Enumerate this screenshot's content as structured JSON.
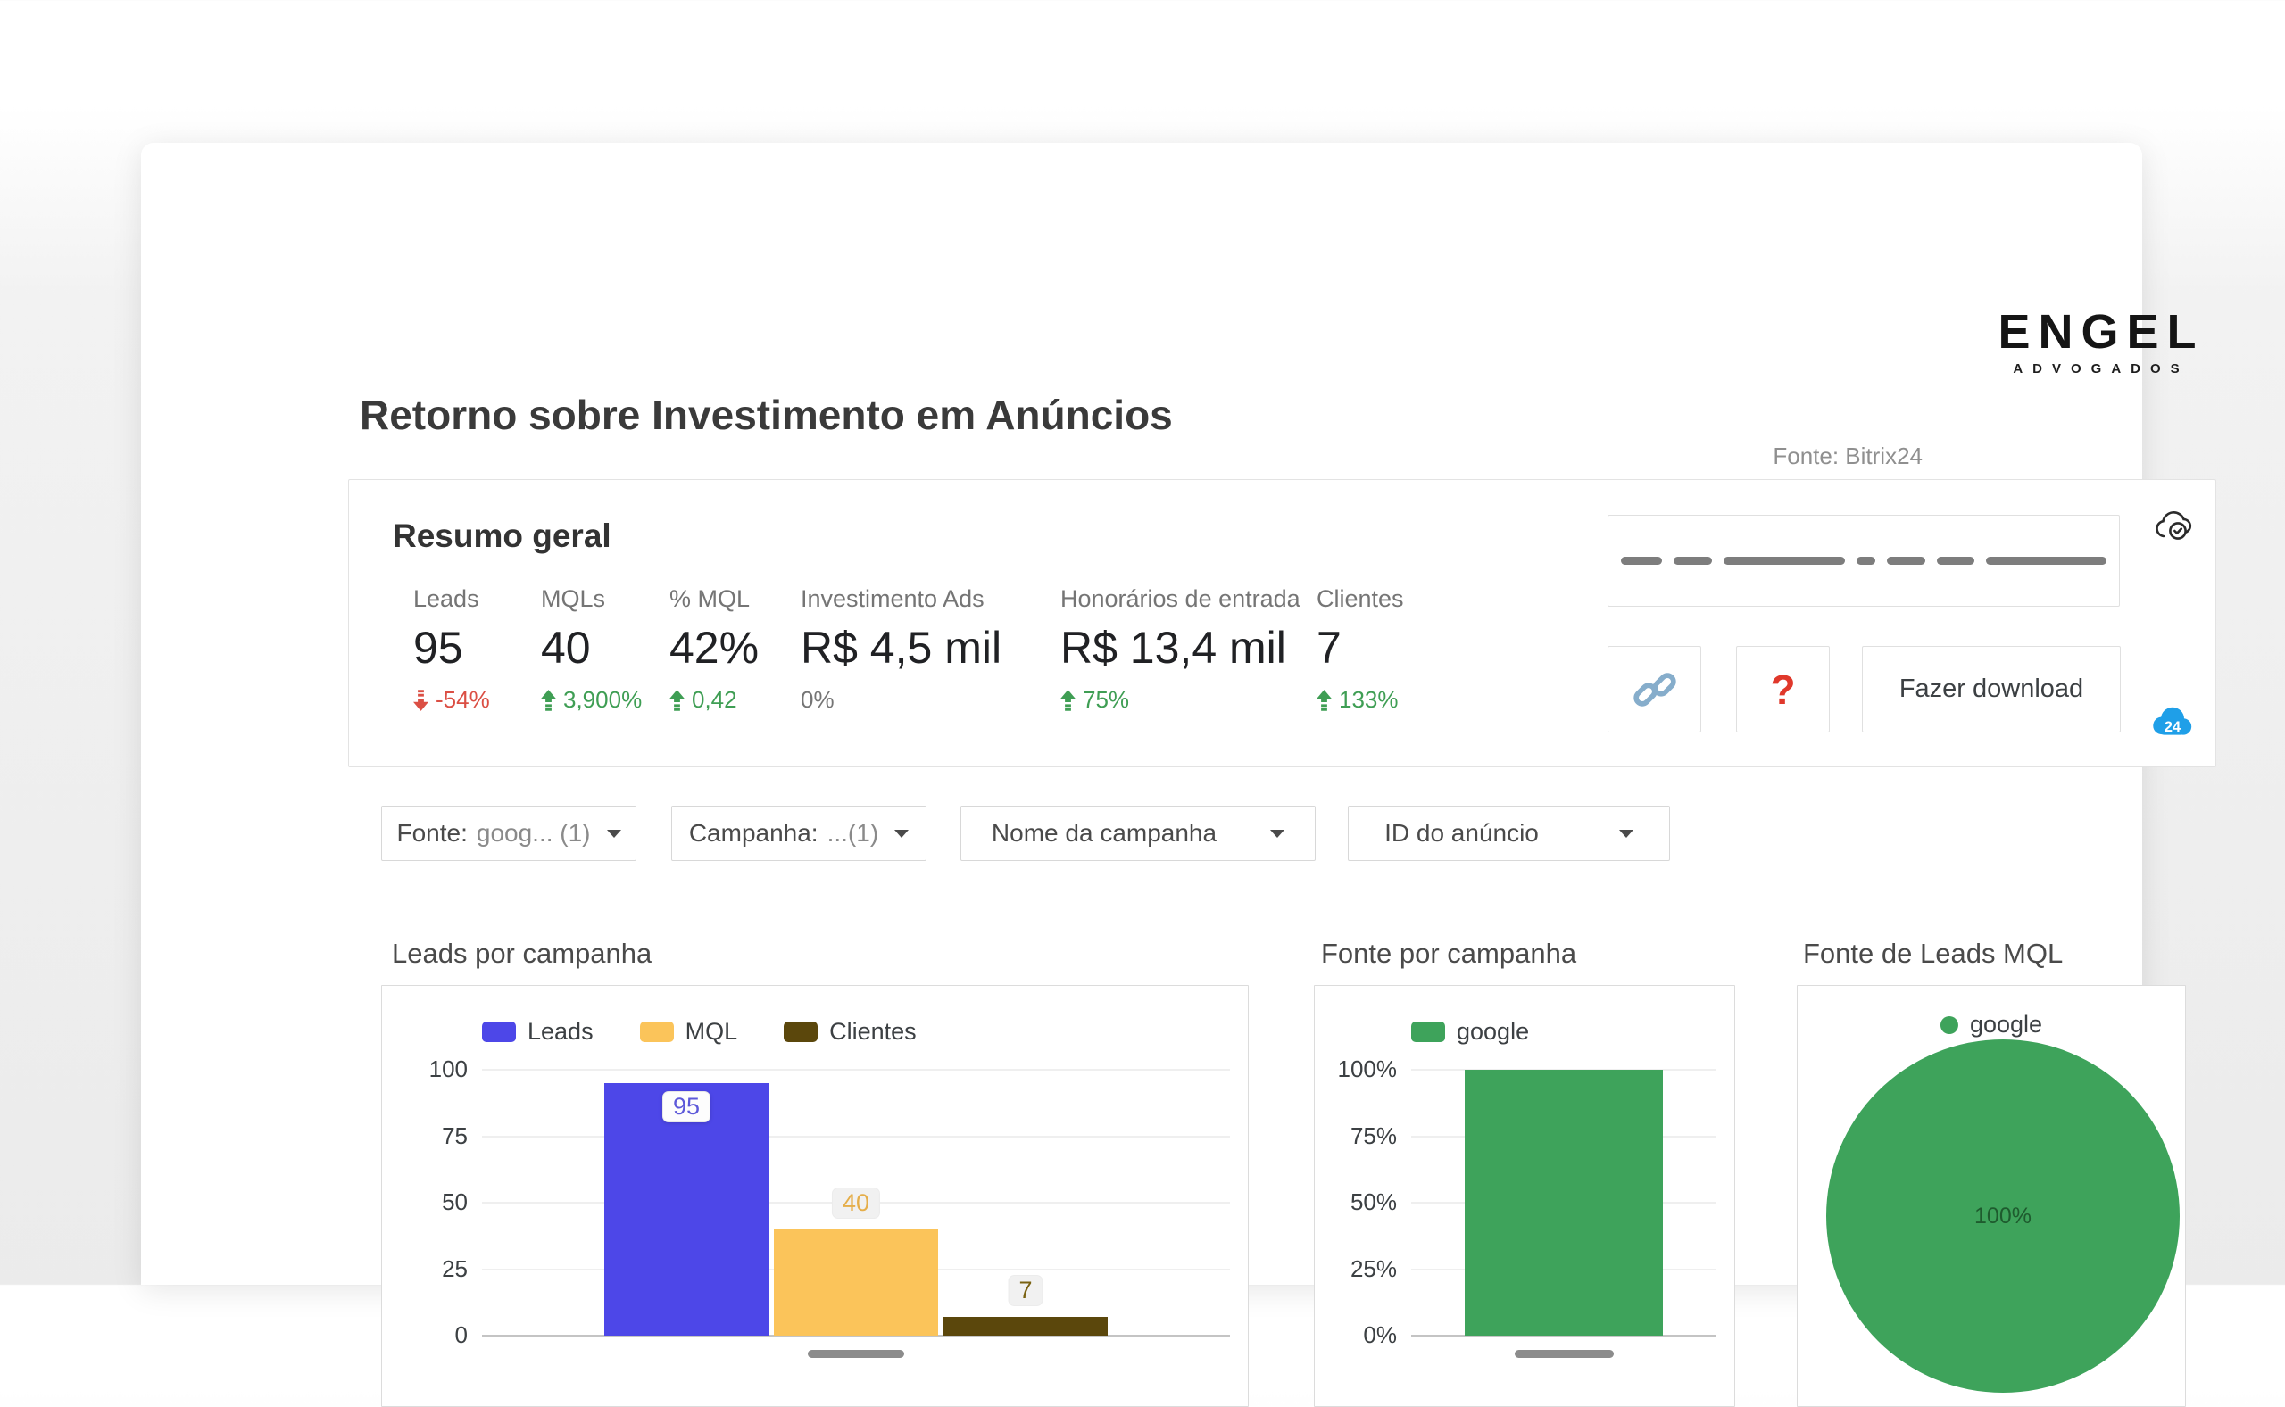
{
  "page": {
    "title": "Retorno sobre Investimento em Anúncios",
    "source_note": "Fonte: Bitrix24",
    "logo": {
      "main": "ENGEL",
      "sub": "ADVOGADOS"
    }
  },
  "summary": {
    "title": "Resumo geral",
    "kpis": [
      {
        "label": "Leads",
        "value": "95",
        "delta": "-54%",
        "direction": "down"
      },
      {
        "label": "MQLs",
        "value": "40",
        "delta": "3,900%",
        "direction": "up"
      },
      {
        "label": "% MQL",
        "value": "42%",
        "delta": "0,42",
        "direction": "up"
      },
      {
        "label": "Investimento Ads",
        "value": "R$ 4,5 mil",
        "delta": "0%",
        "direction": "none"
      },
      {
        "label": "Honorários de entrada",
        "value": "R$ 13,4 mil",
        "delta": "75%",
        "direction": "up"
      },
      {
        "label": "Clientes",
        "value": "7",
        "delta": "133%",
        "direction": "up"
      }
    ],
    "download_label": "Fazer download",
    "help_glyph": "?",
    "bitrix_badge_text": "24"
  },
  "filters": [
    {
      "label": "Fonte:",
      "value": "goog... (1)"
    },
    {
      "label": "Campanha:",
      "value": "...(1)"
    },
    {
      "label": "Nome da campanha",
      "value": ""
    },
    {
      "label": "ID do anúncio",
      "value": ""
    }
  ],
  "colors": {
    "leads_blue": "#4d47e8",
    "mql_amber": "#fbc45a",
    "clientes_brown": "#5b470c",
    "google_green": "#3ea35b",
    "delta_up_green": "#3f9e54",
    "delta_down_red": "#db4f44",
    "bitrix_blue": "#1f9fe8",
    "link_steel_blue": "#86adcb",
    "help_red": "#e0382b",
    "pie_label_green": "#1e5b2e"
  },
  "chart_data": [
    {
      "type": "bar",
      "title": "Leads por campanha",
      "categories": [
        "campanha (rótulo oculto)"
      ],
      "series": [
        {
          "name": "Leads",
          "values": [
            95
          ],
          "color": "#4d47e8",
          "label_color": "#5d59d9"
        },
        {
          "name": "MQL",
          "values": [
            40
          ],
          "color": "#fbc45a",
          "label_color": "#e5ae4a"
        },
        {
          "name": "Clientes",
          "values": [
            7
          ],
          "color": "#5b470c",
          "label_color": "#7a6212"
        }
      ],
      "show_values": true,
      "ylim": [
        0,
        100
      ],
      "yticks": [
        "100",
        "75",
        "50",
        "25",
        "0"
      ],
      "grid": true,
      "legend_position": "top"
    },
    {
      "type": "bar",
      "title": "Fonte por campanha",
      "categories": [
        "campanha (rótulo oculto)"
      ],
      "series": [
        {
          "name": "google",
          "values": [
            100
          ],
          "color": "#3ea35b"
        }
      ],
      "show_values": false,
      "ylim": [
        0,
        100
      ],
      "yticks": [
        "100%",
        "75%",
        "50%",
        "25%",
        "0%"
      ],
      "grid": true,
      "legend_position": "top"
    },
    {
      "type": "pie",
      "title": "Fonte de Leads MQL",
      "slices": [
        {
          "name": "google",
          "value": 100,
          "label": "100%",
          "color": "#3ea35b"
        }
      ],
      "legend_position": "top"
    }
  ]
}
